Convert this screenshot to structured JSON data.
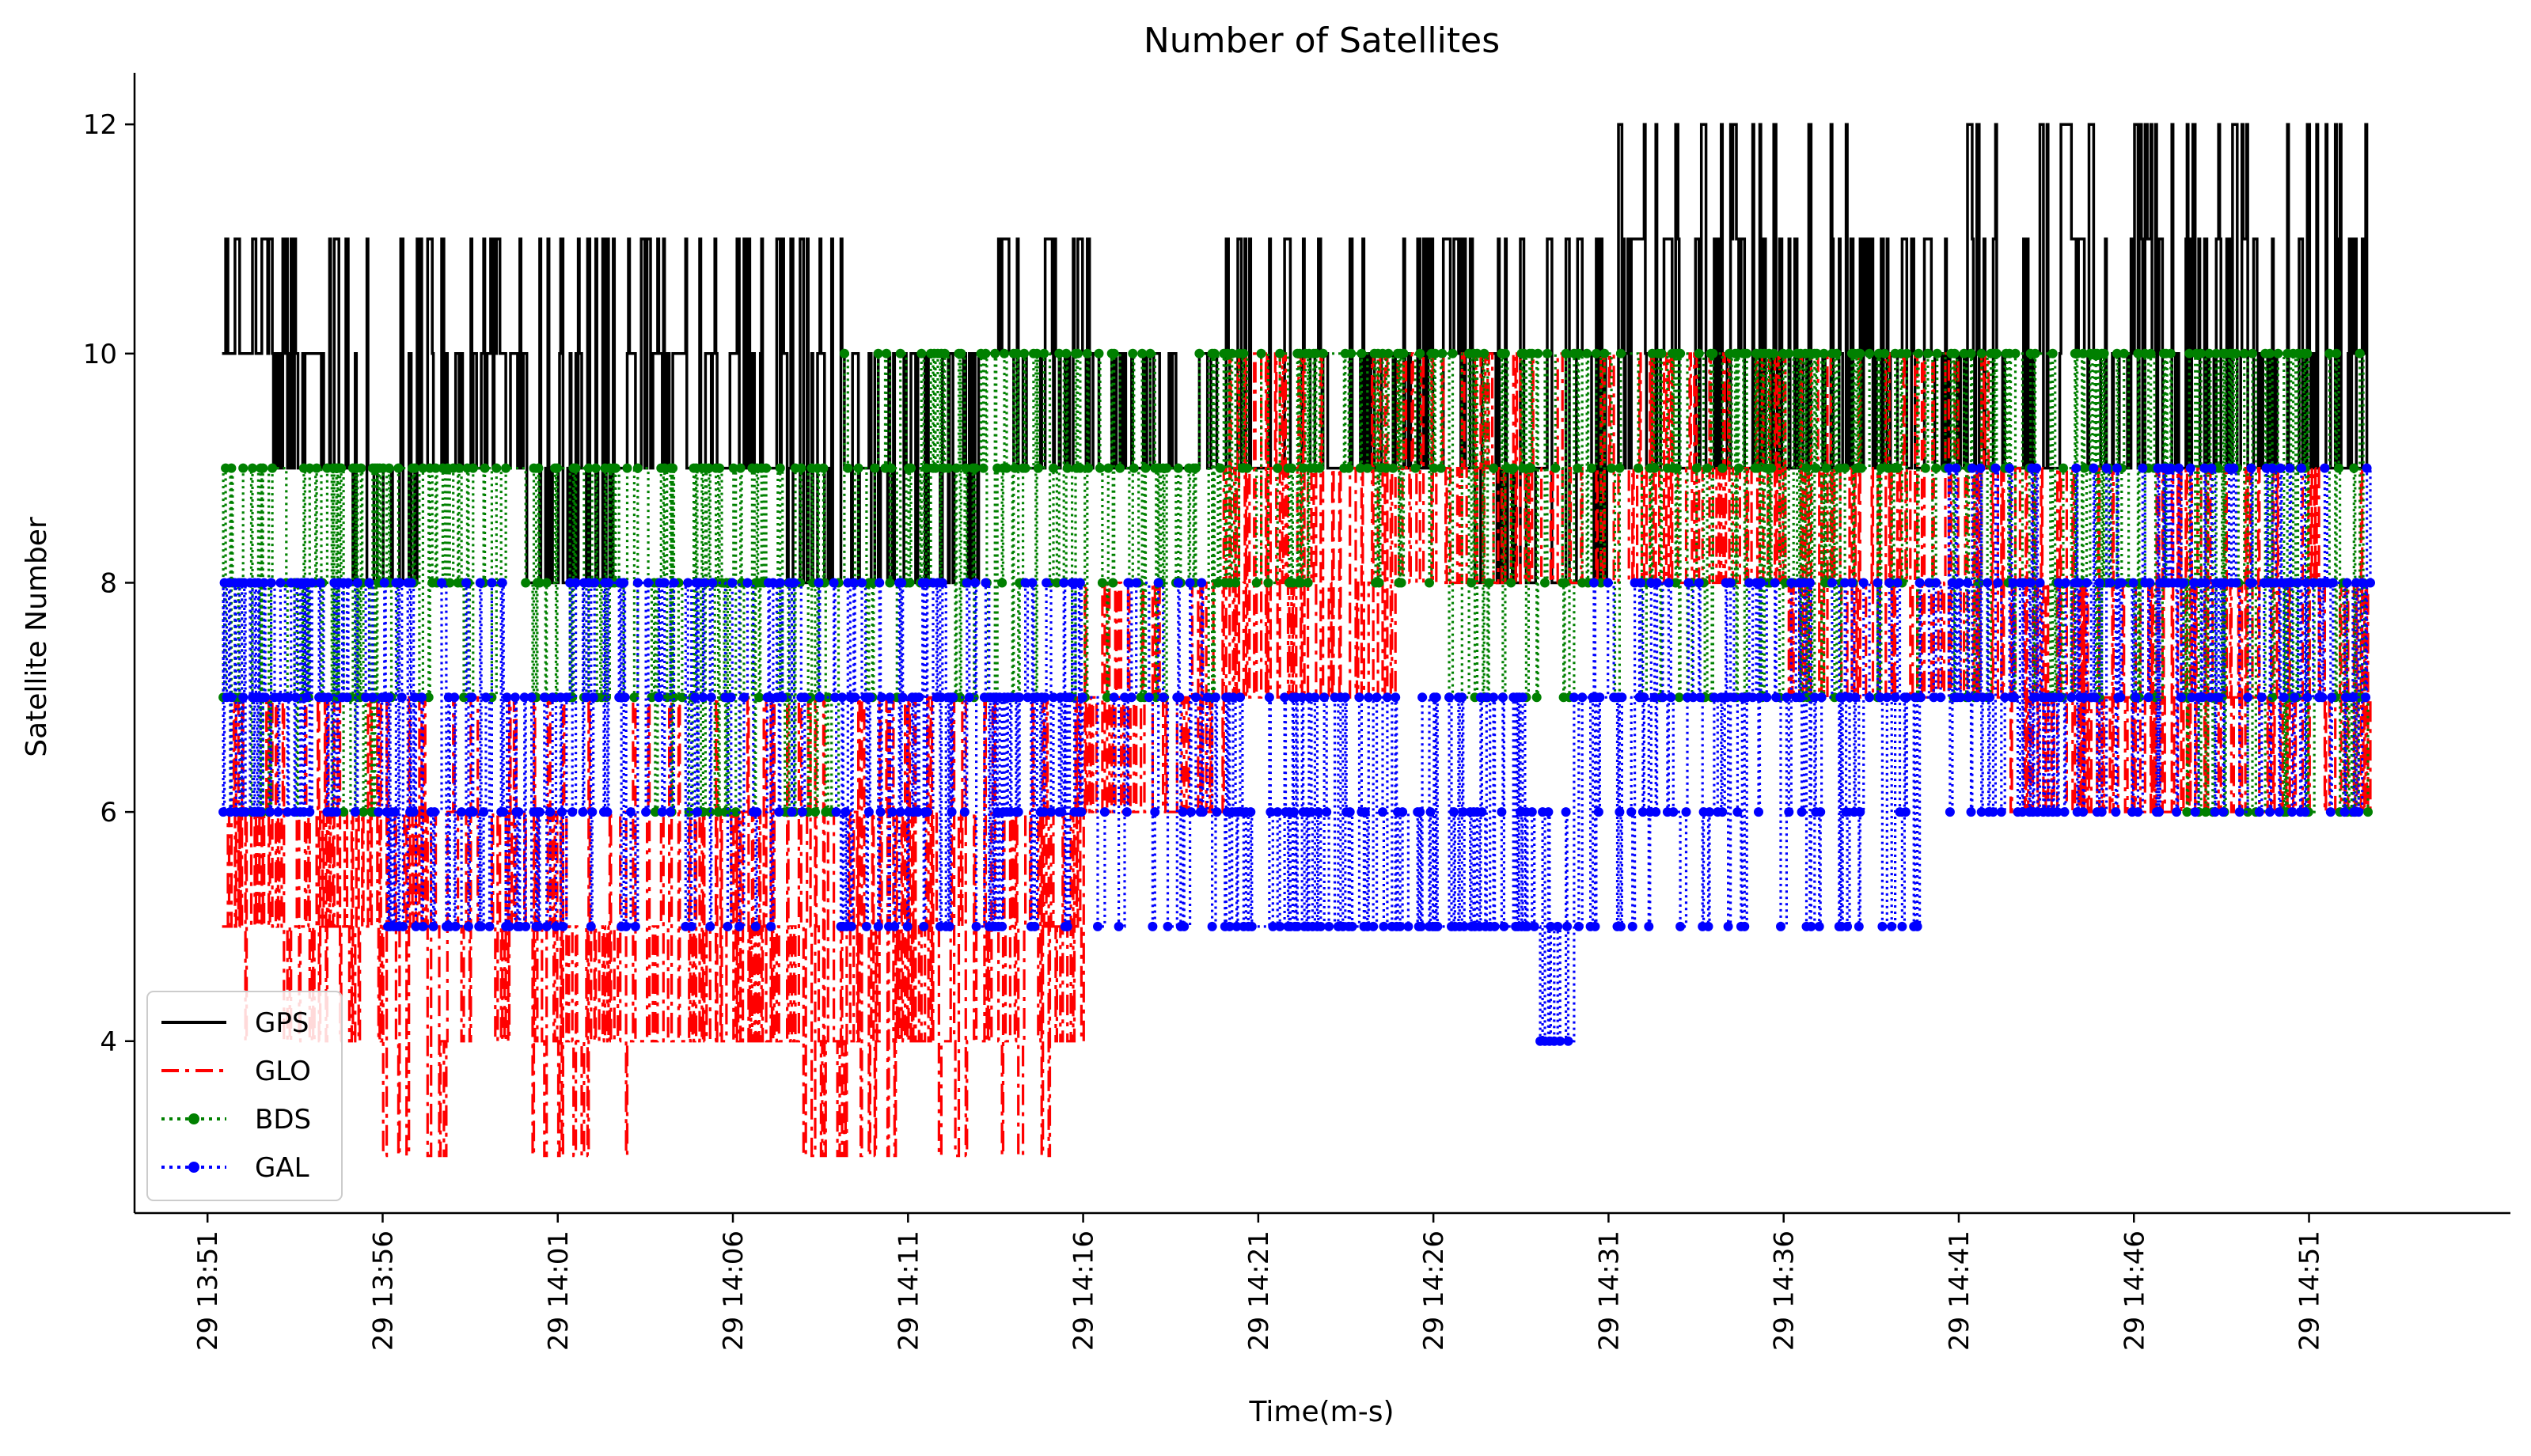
{
  "chart_data": {
    "type": "line",
    "title": "Number of Satellites",
    "xlabel": "Time(m-s)",
    "ylabel": "Satellite Number",
    "x_ticks": [
      "29 13:51",
      "29 13:56",
      "29 14:01",
      "29 14:06",
      "29 14:11",
      "29 14:16",
      "29 14:21",
      "29 14:26",
      "29 14:31",
      "29 14:36",
      "29 14:41",
      "29 14:46",
      "29 14:51"
    ],
    "y_ticks": [
      "4",
      "6",
      "8",
      "10",
      "12"
    ],
    "xlim": [
      "13:48:55",
      "14:56:45"
    ],
    "ylim": [
      2.5,
      12.45
    ],
    "x_start": "13:51:25",
    "x_end": "14:52:45",
    "grid": false,
    "legend_position": "lower-left",
    "series": [
      {
        "name": "GPS",
        "color": "#000000",
        "style": "solid",
        "marker": "none",
        "segments": [
          {
            "t": [
              "13:51:25",
              "13:52:45"
            ],
            "levels": [
              10,
              11
            ],
            "density": 0.7
          },
          {
            "t": [
              "13:52:45",
              "13:53:45"
            ],
            "levels": [
              9,
              10,
              11
            ],
            "density": 0.6
          },
          {
            "t": [
              "13:53:45",
              "13:55:00"
            ],
            "levels": [
              9,
              10,
              11
            ],
            "density": 0.5
          },
          {
            "t": [
              "13:55:00",
              "13:57:15"
            ],
            "levels": [
              8,
              9,
              10,
              11
            ],
            "density": 0.5
          },
          {
            "t": [
              "13:57:15",
              "14:00:00"
            ],
            "levels": [
              9,
              10,
              11
            ],
            "density": 0.6
          },
          {
            "t": [
              "14:00:00",
              "14:03:00"
            ],
            "levels": [
              8,
              9,
              10,
              11
            ],
            "density": 0.6
          },
          {
            "t": [
              "14:03:00",
              "14:07:30"
            ],
            "levels": [
              9,
              10,
              11
            ],
            "density": 0.55
          },
          {
            "t": [
              "14:07:30",
              "14:10:00"
            ],
            "levels": [
              8,
              9,
              10,
              11
            ],
            "density": 0.5
          },
          {
            "t": [
              "14:10:00",
              "14:13:00"
            ],
            "levels": [
              8,
              9,
              10
            ],
            "density": 0.5
          },
          {
            "t": [
              "14:13:00",
              "14:14:00"
            ],
            "levels": [
              10,
              11
            ],
            "density": 0.3
          },
          {
            "t": [
              "14:14:00",
              "14:16:30"
            ],
            "levels": [
              9,
              10,
              11
            ],
            "density": 0.5
          },
          {
            "t": [
              "14:16:30",
              "14:20:00"
            ],
            "levels": [
              9,
              10
            ],
            "density": 0.6
          },
          {
            "t": [
              "14:20:00",
              "14:23:00"
            ],
            "levels": [
              9,
              10,
              11
            ],
            "density": 0.5
          },
          {
            "t": [
              "14:23:00",
              "14:27:00"
            ],
            "levels": [
              9,
              10,
              11
            ],
            "density": 0.5
          },
          {
            "t": [
              "14:27:00",
              "14:31:00"
            ],
            "levels": [
              8,
              9,
              10,
              11
            ],
            "density": 0.5
          },
          {
            "t": [
              "14:31:00",
              "14:34:00"
            ],
            "levels": [
              9,
              10,
              11,
              12
            ],
            "density": 0.6
          },
          {
            "t": [
              "14:34:00",
              "14:38:00"
            ],
            "levels": [
              9,
              10,
              11,
              12
            ],
            "density": 0.6
          },
          {
            "t": [
              "14:38:00",
              "14:41:00"
            ],
            "levels": [
              9,
              10,
              11
            ],
            "density": 0.5
          },
          {
            "t": [
              "14:41:00",
              "14:45:00"
            ],
            "levels": [
              9,
              10,
              11,
              12
            ],
            "density": 0.5
          },
          {
            "t": [
              "14:45:00",
              "14:52:45"
            ],
            "levels": [
              9,
              10,
              11,
              12
            ],
            "density": 0.7
          }
        ]
      },
      {
        "name": "GLO",
        "color": "#ff0000",
        "style": "dashdot",
        "marker": "none",
        "segments": [
          {
            "t": [
              "13:51:25",
              "13:56:00"
            ],
            "levels": [
              5,
              6,
              7,
              4
            ],
            "density": 0.8
          },
          {
            "t": [
              "13:56:00",
              "14:01:00"
            ],
            "levels": [
              5,
              6,
              7,
              4,
              3
            ],
            "density": 0.7
          },
          {
            "t": [
              "14:01:00",
              "14:03:00"
            ],
            "levels": [
              4,
              5,
              6,
              7,
              3
            ],
            "density": 0.8
          },
          {
            "t": [
              "14:03:00",
              "14:08:00"
            ],
            "levels": [
              4,
              5,
              6,
              7
            ],
            "density": 0.8
          },
          {
            "t": [
              "14:08:00",
              "14:16:00"
            ],
            "levels": [
              4,
              5,
              6,
              7,
              3
            ],
            "density": 0.7
          },
          {
            "t": [
              "14:16:00",
              "14:20:00"
            ],
            "levels": [
              6,
              7,
              8
            ],
            "density": 0.7
          },
          {
            "t": [
              "14:20:00",
              "14:25:00"
            ],
            "levels": [
              7,
              8,
              9,
              10
            ],
            "density": 0.8
          },
          {
            "t": [
              "14:25:00",
              "14:30:00"
            ],
            "levels": [
              8,
              9,
              10
            ],
            "density": 0.6
          },
          {
            "t": [
              "14:30:00",
              "14:36:00"
            ],
            "levels": [
              8,
              9,
              10
            ],
            "density": 0.8
          },
          {
            "t": [
              "14:36:00",
              "14:42:00"
            ],
            "levels": [
              7,
              8,
              9,
              10
            ],
            "density": 0.7
          },
          {
            "t": [
              "14:42:00",
              "14:52:45"
            ],
            "levels": [
              6,
              7,
              8,
              9
            ],
            "density": 0.7
          }
        ]
      },
      {
        "name": "BDS",
        "color": "#008000",
        "style": "dotted",
        "marker": "dot",
        "segments": [
          {
            "t": [
              "13:51:25",
              "13:56:00"
            ],
            "levels": [
              9,
              8,
              7,
              6
            ],
            "density": 0.7
          },
          {
            "t": [
              "13:56:00",
              "14:03:00"
            ],
            "levels": [
              9,
              8,
              7
            ],
            "density": 0.5
          },
          {
            "t": [
              "14:03:00",
              "14:09:00"
            ],
            "levels": [
              9,
              8,
              7,
              6
            ],
            "density": 0.6
          },
          {
            "t": [
              "14:09:00",
              "14:14:00"
            ],
            "levels": [
              9,
              10,
              8,
              7
            ],
            "density": 0.6
          },
          {
            "t": [
              "14:14:00",
              "14:20:00"
            ],
            "levels": [
              9,
              10,
              8,
              7
            ],
            "density": 0.6
          },
          {
            "t": [
              "14:20:00",
              "14:25:00"
            ],
            "levels": [
              10,
              9,
              8
            ],
            "density": 0.5
          },
          {
            "t": [
              "14:25:00",
              "14:30:00"
            ],
            "levels": [
              10,
              9,
              8,
              7
            ],
            "density": 0.5
          },
          {
            "t": [
              "14:30:00",
              "14:41:00"
            ],
            "levels": [
              10,
              9,
              8,
              7
            ],
            "density": 0.6
          },
          {
            "t": [
              "14:41:00",
              "14:46:00"
            ],
            "levels": [
              10,
              9,
              8,
              7
            ],
            "density": 0.6
          },
          {
            "t": [
              "14:46:00",
              "14:52:45"
            ],
            "levels": [
              10,
              9,
              8,
              7,
              6
            ],
            "density": 0.6
          }
        ]
      },
      {
        "name": "GAL",
        "color": "#0000ff",
        "style": "dotted",
        "marker": "dot",
        "segments": [
          {
            "t": [
              "13:51:25",
              "13:56:00"
            ],
            "levels": [
              8,
              7,
              6
            ],
            "density": 0.7
          },
          {
            "t": [
              "13:56:00",
              "14:01:00"
            ],
            "levels": [
              5,
              6,
              7,
              8
            ],
            "density": 0.6
          },
          {
            "t": [
              "14:01:00",
              "14:08:00"
            ],
            "levels": [
              8,
              7,
              6,
              5
            ],
            "density": 0.6
          },
          {
            "t": [
              "14:08:00",
              "14:16:00"
            ],
            "levels": [
              7,
              6,
              5,
              8
            ],
            "density": 0.7
          },
          {
            "t": [
              "14:16:00",
              "14:20:00"
            ],
            "levels": [
              7,
              8,
              6,
              5
            ],
            "density": 0.5
          },
          {
            "t": [
              "14:20:00",
              "14:29:00"
            ],
            "levels": [
              5,
              6,
              7
            ],
            "density": 0.7
          },
          {
            "t": [
              "14:29:00",
              "14:30:00"
            ],
            "levels": [
              4,
              5,
              6
            ],
            "density": 0.4
          },
          {
            "t": [
              "14:30:00",
              "14:40:00"
            ],
            "levels": [
              7,
              8,
              6,
              5
            ],
            "density": 0.6
          },
          {
            "t": [
              "14:40:00",
              "14:45:00"
            ],
            "levels": [
              7,
              8,
              9,
              6
            ],
            "density": 0.6
          },
          {
            "t": [
              "14:45:00",
              "14:52:45"
            ],
            "levels": [
              8,
              9,
              7,
              6
            ],
            "density": 0.6
          }
        ]
      }
    ]
  }
}
